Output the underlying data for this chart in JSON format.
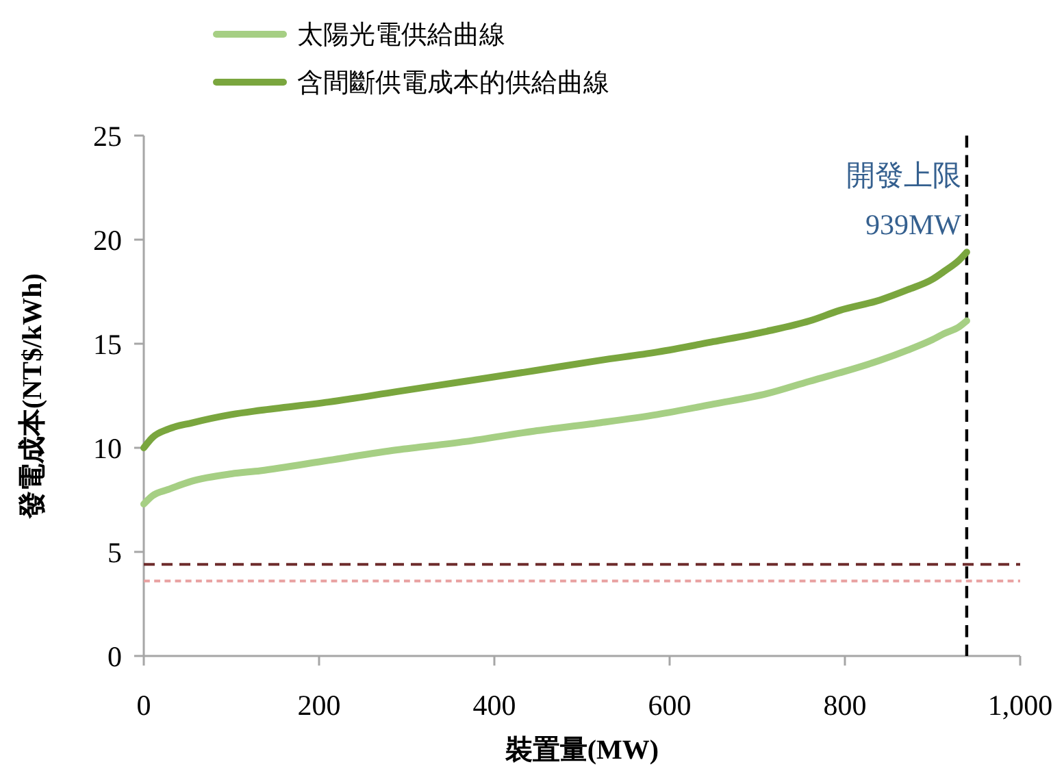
{
  "chart_data": {
    "type": "line",
    "xlabel": "裝置量(MW)",
    "ylabel": "發電成本(NT$/kWh)",
    "xlim": [
      0,
      1000
    ],
    "xticks": [
      0,
      200,
      400,
      600,
      800,
      {
        "value": 1000,
        "label": "1,000"
      }
    ],
    "ylim": [
      0,
      25
    ],
    "yticks": [
      0,
      5,
      10,
      15,
      20,
      25
    ],
    "series": [
      {
        "name": "太陽光電供給曲線",
        "color": "#a6cf84",
        "x": [
          0,
          10,
          28,
          55,
          100,
          133,
          211,
          289,
          367,
          445,
          520,
          586,
          650,
          711,
          760,
          794,
          840,
          872,
          900,
          914,
          930,
          939
        ],
        "values": [
          7.3,
          7.7,
          8.0,
          8.4,
          8.75,
          8.9,
          9.4,
          9.9,
          10.3,
          10.8,
          11.2,
          11.6,
          12.1,
          12.6,
          13.2,
          13.6,
          14.2,
          14.7,
          15.2,
          15.5,
          15.8,
          16.1
        ]
      },
      {
        "name": "含間斷供電成本的供給曲線",
        "color": "#7aa63e",
        "x": [
          0,
          10,
          28,
          55,
          100,
          133,
          211,
          289,
          367,
          445,
          520,
          586,
          650,
          711,
          760,
          794,
          840,
          872,
          900,
          914,
          930,
          939
        ],
        "values": [
          10.0,
          10.5,
          10.9,
          11.2,
          11.6,
          11.8,
          12.2,
          12.7,
          13.2,
          13.7,
          14.2,
          14.6,
          15.1,
          15.6,
          16.1,
          16.6,
          17.1,
          17.6,
          18.1,
          18.5,
          19.0,
          19.4
        ]
      }
    ],
    "ref_lines": [
      {
        "axis": "y",
        "value": 4.4,
        "color": "#6e2c2c",
        "line_style": "dashed"
      },
      {
        "axis": "y",
        "value": 3.6,
        "color": "#e8a0a0",
        "line_style": "dotted"
      },
      {
        "axis": "x",
        "value": 939,
        "label": "開發上限\n939MW",
        "color": "#000000",
        "line_style": "dashed"
      }
    ],
    "grid": false,
    "legend": "top left",
    "marker": "none",
    "line_style": "solid"
  }
}
